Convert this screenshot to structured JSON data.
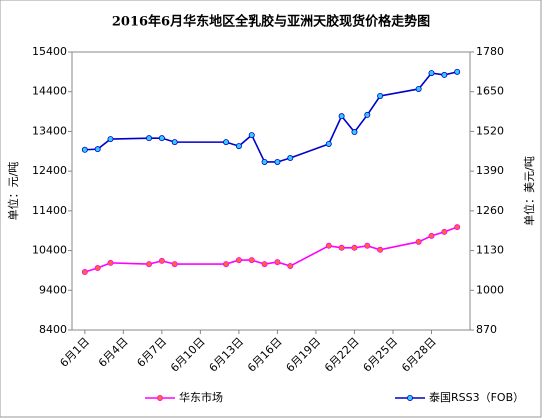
{
  "chart_data": {
    "type": "line",
    "title": "2016年6月华东地区全乳胶与亚洲天胶现货价格走势图",
    "ylabel": "单位：元/吨",
    "y2label": "单位：美元/吨",
    "x": [
      1,
      2,
      3,
      6,
      7,
      8,
      12,
      13,
      14,
      15,
      16,
      17,
      20,
      21,
      22,
      23,
      24,
      27,
      28,
      29,
      30
    ],
    "xlim": [
      0,
      31
    ],
    "xticks": [
      {
        "value": 1,
        "label": "6月1日"
      },
      {
        "value": 4,
        "label": "6月4日"
      },
      {
        "value": 7,
        "label": "6月7日"
      },
      {
        "value": 10,
        "label": "6月10日"
      },
      {
        "value": 13,
        "label": "6月13日"
      },
      {
        "value": 16,
        "label": "6月16日"
      },
      {
        "value": 19,
        "label": "6月19日"
      },
      {
        "value": 22,
        "label": "6月22日"
      },
      {
        "value": 25,
        "label": "6月25日"
      },
      {
        "value": 28,
        "label": "6月28日"
      }
    ],
    "ylim": [
      8400,
      15400
    ],
    "yticks": [
      8400,
      9400,
      10400,
      11400,
      12400,
      13400,
      14400,
      15400
    ],
    "y2lim": [
      870,
      1780
    ],
    "y2ticks": [
      870,
      1000,
      1130,
      1260,
      1390,
      1520,
      1650,
      1780
    ],
    "grid": false,
    "legend": "bottom",
    "series": [
      {
        "name": "华东市场",
        "color": "#ff00ff",
        "marker_color": "#ff6633",
        "values": [
          9860,
          9960,
          10090,
          10060,
          10140,
          10060,
          10060,
          10160,
          10160,
          10060,
          10110,
          10010,
          10520,
          10470,
          10470,
          10520,
          10420,
          10620,
          10770,
          10870,
          10990
        ]
      },
      {
        "name": "泰国RSS3（FOB）",
        "color": "#0000cc",
        "marker_color": "#33ccff",
        "axis": "y2",
        "values": [
          1460,
          1462,
          1495,
          1498,
          1498,
          1485,
          1485,
          1472,
          1508,
          1420,
          1420,
          1433,
          1479,
          1570,
          1518,
          1574,
          1636,
          1659,
          1711,
          1705,
          1715
        ]
      }
    ]
  }
}
